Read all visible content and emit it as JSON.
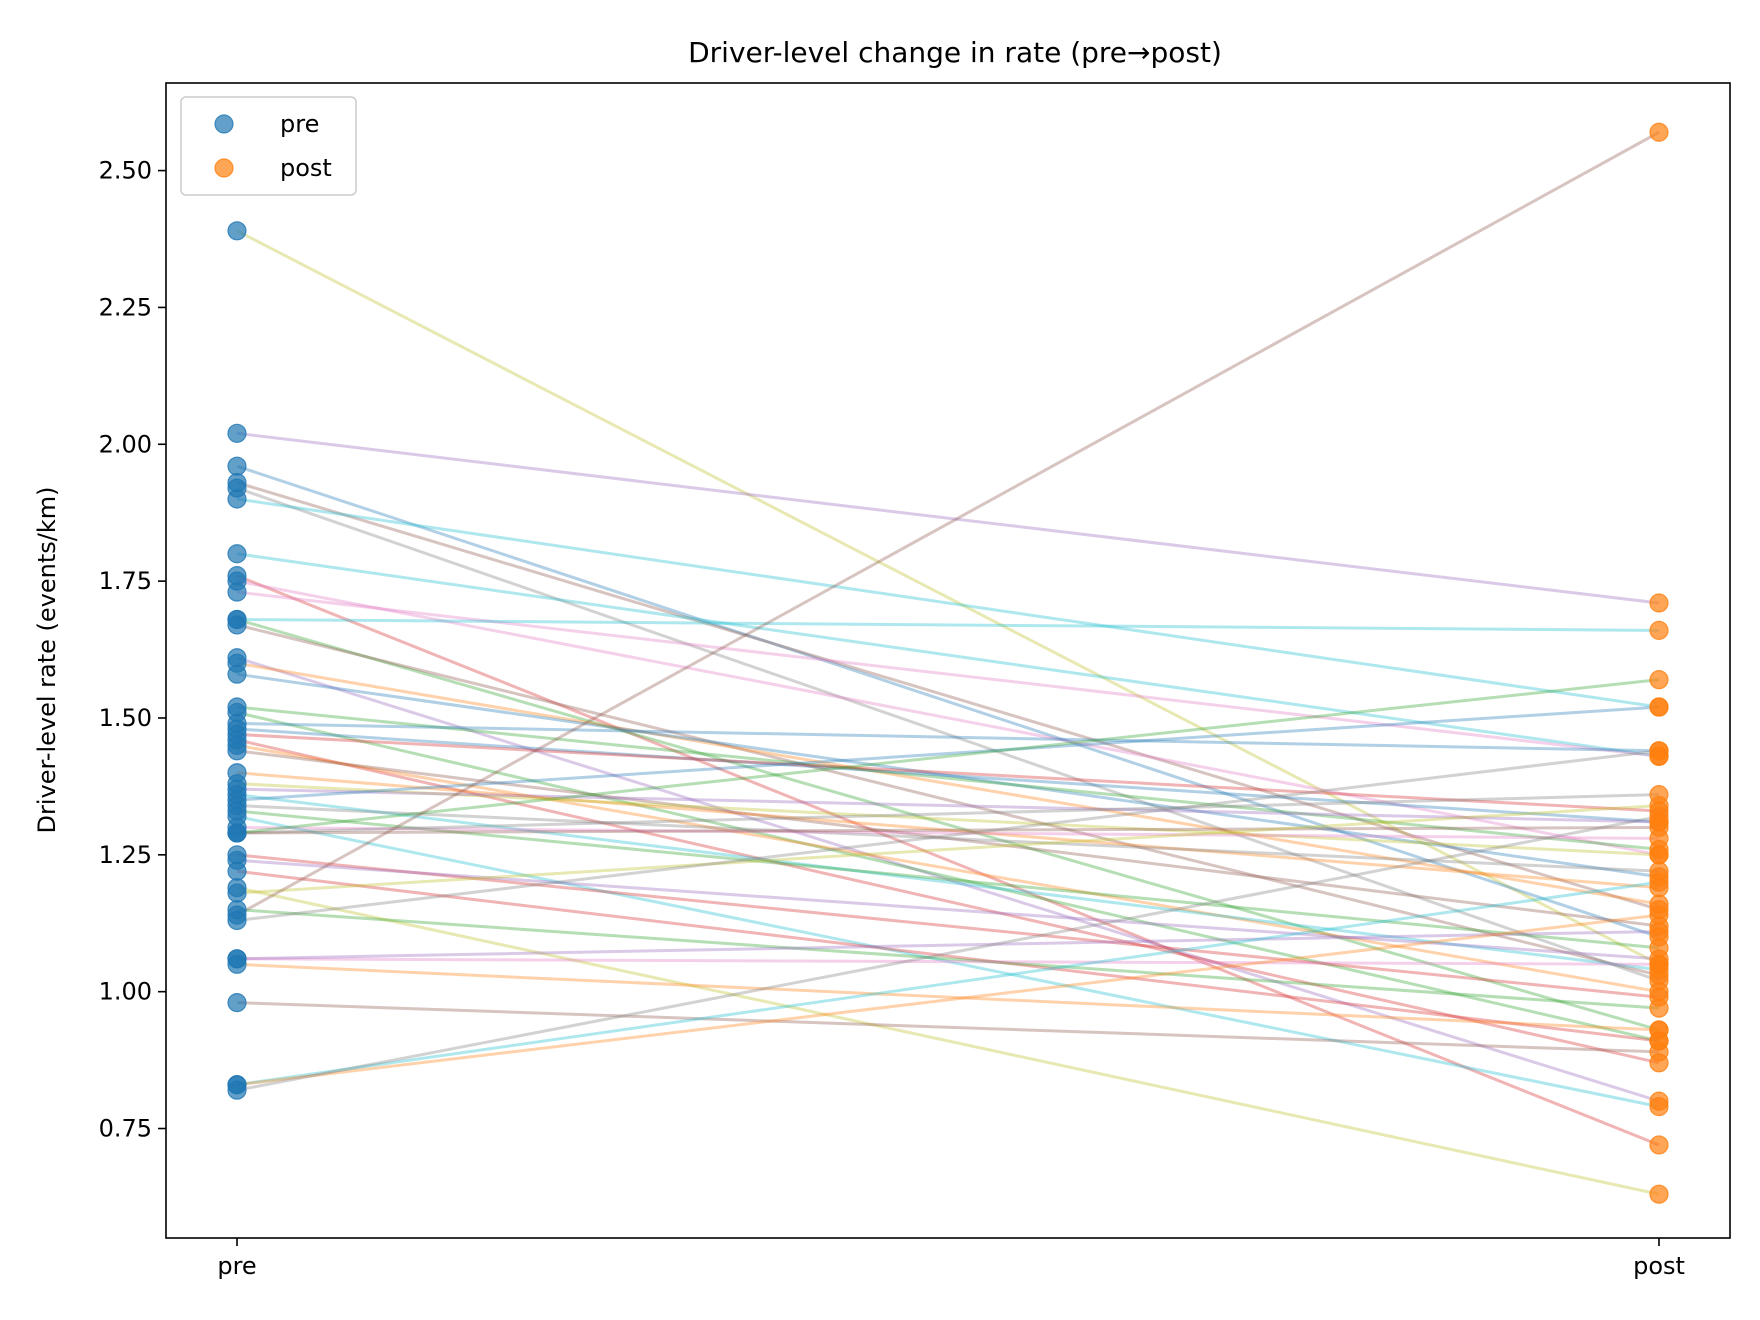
{
  "chart_data": {
    "type": "line",
    "title": "Driver-level change in rate (pre→post)",
    "xlabel": "",
    "ylabel": "Driver-level rate (events/km)",
    "categories": [
      "pre",
      "post"
    ],
    "ylim": [
      0.55,
      2.66
    ],
    "yticks": [
      0.75,
      1.0,
      1.25,
      1.5,
      1.75,
      2.0,
      2.25,
      2.5
    ],
    "ytick_labels": [
      "0.75",
      "1.00",
      "1.25",
      "1.50",
      "1.75",
      "2.00",
      "2.25",
      "2.50"
    ],
    "grid": false,
    "legend": {
      "placement": "top-left",
      "entries": [
        {
          "label": "pre",
          "color": "#1f77b4"
        },
        {
          "label": "post",
          "color": "#ff7f0e"
        }
      ]
    },
    "marker_colors": {
      "pre": "#1f77b4",
      "post": "#ff7f0e"
    },
    "line_palette": [
      "#1f77b4",
      "#ff7f0e",
      "#2ca02c",
      "#d62728",
      "#9467bd",
      "#8c564b",
      "#e377c2",
      "#7f7f7f",
      "#bcbd22",
      "#17becf"
    ],
    "pairs": [
      {
        "pre": 2.39,
        "post": 1.05,
        "color": "#bcbd22"
      },
      {
        "pre": 2.02,
        "post": 1.71,
        "color": "#9467bd"
      },
      {
        "pre": 1.96,
        "post": 1.1,
        "color": "#1f77b4"
      },
      {
        "pre": 1.93,
        "post": 1.15,
        "color": "#8c564b"
      },
      {
        "pre": 1.92,
        "post": 1.02,
        "color": "#7f7f7f"
      },
      {
        "pre": 1.9,
        "post": 1.52,
        "color": "#17becf"
      },
      {
        "pre": 1.8,
        "post": 1.43,
        "color": "#17becf"
      },
      {
        "pre": 1.76,
        "post": 0.72,
        "color": "#d62728"
      },
      {
        "pre": 1.75,
        "post": 1.25,
        "color": "#e377c2"
      },
      {
        "pre": 1.73,
        "post": 1.43,
        "color": "#e377c2"
      },
      {
        "pre": 1.68,
        "post": 1.66,
        "color": "#17becf"
      },
      {
        "pre": 1.68,
        "post": 0.93,
        "color": "#2ca02c"
      },
      {
        "pre": 1.67,
        "post": 1.03,
        "color": "#8c564b"
      },
      {
        "pre": 1.61,
        "post": 0.8,
        "color": "#9467bd"
      },
      {
        "pre": 1.6,
        "post": 1.16,
        "color": "#ff7f0e"
      },
      {
        "pre": 1.58,
        "post": 1.21,
        "color": "#1f77b4"
      },
      {
        "pre": 1.52,
        "post": 1.26,
        "color": "#2ca02c"
      },
      {
        "pre": 1.51,
        "post": 0.91,
        "color": "#2ca02c"
      },
      {
        "pre": 1.49,
        "post": 1.44,
        "color": "#1f77b4"
      },
      {
        "pre": 1.48,
        "post": 1.31,
        "color": "#1f77b4"
      },
      {
        "pre": 1.47,
        "post": 1.33,
        "color": "#d62728"
      },
      {
        "pre": 1.46,
        "post": 0.87,
        "color": "#d62728"
      },
      {
        "pre": 1.45,
        "post": 1.0,
        "color": "#ff7f0e"
      },
      {
        "pre": 1.44,
        "post": 1.12,
        "color": "#8c564b"
      },
      {
        "pre": 1.4,
        "post": 1.19,
        "color": "#ff7f0e"
      },
      {
        "pre": 1.38,
        "post": 1.25,
        "color": "#bcbd22"
      },
      {
        "pre": 1.37,
        "post": 1.31,
        "color": "#9467bd"
      },
      {
        "pre": 1.36,
        "post": 1.04,
        "color": "#17becf"
      },
      {
        "pre": 1.35,
        "post": 1.52,
        "color": "#1f77b4"
      },
      {
        "pre": 1.34,
        "post": 1.22,
        "color": "#7f7f7f"
      },
      {
        "pre": 1.33,
        "post": 1.08,
        "color": "#2ca02c"
      },
      {
        "pre": 1.32,
        "post": 0.79,
        "color": "#17becf"
      },
      {
        "pre": 1.3,
        "post": 1.28,
        "color": "#e377c2"
      },
      {
        "pre": 1.29,
        "post": 1.36,
        "color": "#7f7f7f"
      },
      {
        "pre": 1.29,
        "post": 1.3,
        "color": "#8c564b"
      },
      {
        "pre": 1.29,
        "post": 1.57,
        "color": "#2ca02c"
      },
      {
        "pre": 1.25,
        "post": 0.99,
        "color": "#d62728"
      },
      {
        "pre": 1.24,
        "post": 1.06,
        "color": "#9467bd"
      },
      {
        "pre": 1.22,
        "post": 0.91,
        "color": "#d62728"
      },
      {
        "pre": 1.19,
        "post": 0.63,
        "color": "#bcbd22"
      },
      {
        "pre": 1.18,
        "post": 1.34,
        "color": "#bcbd22"
      },
      {
        "pre": 1.15,
        "post": 0.97,
        "color": "#2ca02c"
      },
      {
        "pre": 1.14,
        "post": 2.57,
        "color": "#8c564b"
      },
      {
        "pre": 1.13,
        "post": 1.44,
        "color": "#7f7f7f"
      },
      {
        "pre": 1.06,
        "post": 1.05,
        "color": "#e377c2"
      },
      {
        "pre": 1.06,
        "post": 1.11,
        "color": "#9467bd"
      },
      {
        "pre": 1.05,
        "post": 0.93,
        "color": "#ff7f0e"
      },
      {
        "pre": 0.98,
        "post": 0.89,
        "color": "#8c564b"
      },
      {
        "pre": 0.83,
        "post": 1.2,
        "color": "#17becf"
      },
      {
        "pre": 0.83,
        "post": 1.14,
        "color": "#ff7f0e"
      },
      {
        "pre": 0.82,
        "post": 1.32,
        "color": "#7f7f7f"
      }
    ]
  }
}
